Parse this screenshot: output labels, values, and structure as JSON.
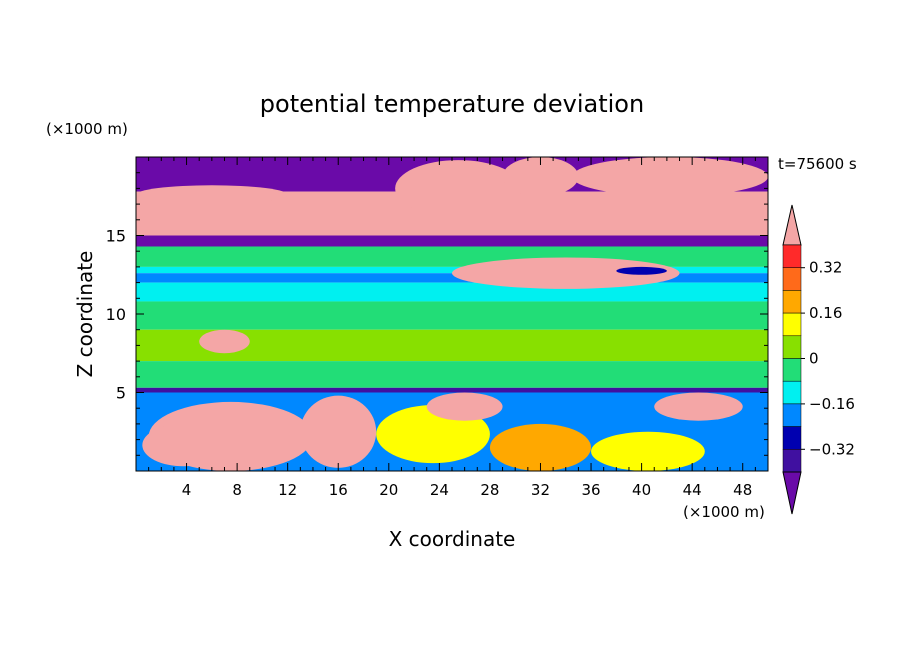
{
  "chart_data": {
    "type": "heatmap",
    "title": "potential temperature deviation",
    "xlabel": "X coordinate",
    "ylabel": "Z coordinate",
    "x_unit": "(×1000 m)",
    "y_unit": "(×1000 m)",
    "time_label": "t=75600 s",
    "xlim": [
      0,
      50
    ],
    "ylim": [
      0,
      20
    ],
    "x_ticks": [
      4,
      8,
      12,
      16,
      20,
      24,
      28,
      32,
      36,
      40,
      44,
      48
    ],
    "y_ticks": [
      5,
      10,
      15
    ],
    "colorbar": {
      "labels": [
        {
          "value": 0.32,
          "text": "0.32"
        },
        {
          "value": 0.16,
          "text": "0.16"
        },
        {
          "value": 0,
          "text": "0"
        },
        {
          "value": -0.16,
          "text": "−0.16"
        },
        {
          "value": -0.32,
          "text": "−0.32"
        }
      ],
      "levels": [
        {
          "from": 0.4,
          "to": null,
          "color": "#f4a6a6"
        },
        {
          "from": 0.32,
          "to": 0.4,
          "color": "#ff2a2a"
        },
        {
          "from": 0.24,
          "to": 0.32,
          "color": "#ff6a1a"
        },
        {
          "from": 0.16,
          "to": 0.24,
          "color": "#ffa800"
        },
        {
          "from": 0.08,
          "to": 0.16,
          "color": "#ffff00"
        },
        {
          "from": 0.0,
          "to": 0.08,
          "color": "#88e000"
        },
        {
          "from": -0.08,
          "to": 0.0,
          "color": "#22dd77"
        },
        {
          "from": -0.16,
          "to": -0.08,
          "color": "#00f0f0"
        },
        {
          "from": -0.24,
          "to": -0.16,
          "color": "#0088ff"
        },
        {
          "from": -0.32,
          "to": -0.24,
          "color": "#0000b0"
        },
        {
          "from": -0.4,
          "to": -0.32,
          "color": "#4010a0"
        },
        {
          "from": null,
          "to": -0.4,
          "color": "#6a0aa8"
        }
      ]
    },
    "field_bands": [
      {
        "z": [
          17.8,
          20.0
        ],
        "value": -0.45
      },
      {
        "z": [
          15.0,
          17.8
        ],
        "value": 0.45
      },
      {
        "z": [
          14.3,
          15.0
        ],
        "value": -0.45
      },
      {
        "z": [
          13.0,
          14.3
        ],
        "value": -0.04
      },
      {
        "z": [
          12.6,
          13.0
        ],
        "value": -0.12
      },
      {
        "z": [
          12.0,
          12.6
        ],
        "value": -0.2
      },
      {
        "z": [
          10.8,
          12.0
        ],
        "value": -0.12
      },
      {
        "z": [
          9.0,
          10.8
        ],
        "value": -0.04
      },
      {
        "z": [
          7.0,
          9.0
        ],
        "value": 0.04
      },
      {
        "z": [
          5.3,
          7.0
        ],
        "value": -0.04
      },
      {
        "z": [
          5.0,
          5.3
        ],
        "value": -0.4
      },
      {
        "z": [
          0.0,
          5.0
        ],
        "value": -0.2
      }
    ],
    "anomalies": [
      {
        "x": [
          20.5,
          30.5
        ],
        "z": [
          16.2,
          19.8
        ],
        "value": 0.45
      },
      {
        "x": [
          29,
          35
        ],
        "z": [
          17.5,
          20.0
        ],
        "value": 0.45
      },
      {
        "x": [
          34.5,
          50
        ],
        "z": [
          17.5,
          20.0
        ],
        "value": 0.45
      },
      {
        "x": [
          0,
          12
        ],
        "z": [
          17.0,
          18.2
        ],
        "value": 0.45
      },
      {
        "x": [
          25,
          43
        ],
        "z": [
          11.6,
          13.6
        ],
        "value": 0.45
      },
      {
        "x": [
          38,
          42
        ],
        "z": [
          12.5,
          13.0
        ],
        "value": -0.28
      },
      {
        "x": [
          1,
          14
        ],
        "z": [
          0.0,
          4.4
        ],
        "value": 0.4
      },
      {
        "x": [
          13,
          19
        ],
        "z": [
          0.2,
          4.8
        ],
        "value": 0.45
      },
      {
        "x": [
          19,
          28
        ],
        "z": [
          0.5,
          4.2
        ],
        "value": 0.12
      },
      {
        "x": [
          28,
          36
        ],
        "z": [
          0.0,
          3.0
        ],
        "value": 0.2
      },
      {
        "x": [
          36,
          45
        ],
        "z": [
          0.0,
          2.5
        ],
        "value": 0.12
      },
      {
        "x": [
          0.5,
          7
        ],
        "z": [
          0.3,
          3.0
        ],
        "value": 0.45
      },
      {
        "x": [
          23,
          29
        ],
        "z": [
          3.2,
          5.0
        ],
        "value": 0.45
      },
      {
        "x": [
          41,
          48
        ],
        "z": [
          3.2,
          5.0
        ],
        "value": 0.45
      },
      {
        "x": [
          5,
          9
        ],
        "z": [
          7.5,
          9.0
        ],
        "value": 0.45
      }
    ]
  }
}
